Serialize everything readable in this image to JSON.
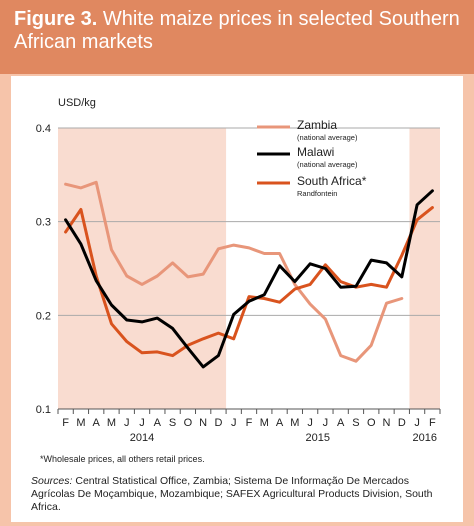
{
  "header": {
    "figure_label": "Figure 3.",
    "title": "White maize prices in selected Southern African markets"
  },
  "footnote": "*Wholesale prices, all others retail prices.",
  "sources_label": "Sources:",
  "sources_text": "Central Statistical Office, Zambia; Sistema De Informação De Mercados Agrícolas De Moçambique, Mozambique; SAFEX Agricultural Products Division, South Africa.",
  "colors": {
    "zambia": "#e8967a",
    "malawi": "#000000",
    "south_africa": "#d9531e",
    "shade": "#f9dcd0",
    "grid": "#aaaaaa",
    "header_bg": "#e08860",
    "page_bg": "#f6c4aa"
  },
  "chart_data": {
    "type": "line",
    "ylabel": "USD/kg",
    "ylim": [
      0.1,
      0.4
    ],
    "yticks": [
      "0.1",
      "0.2",
      "0.3",
      "0.4"
    ],
    "grid": true,
    "categories": [
      "F",
      "M",
      "A",
      "M",
      "J",
      "J",
      "A",
      "S",
      "O",
      "N",
      "D",
      "J",
      "F",
      "M",
      "A",
      "M",
      "J",
      "J",
      "A",
      "S",
      "O",
      "N",
      "D",
      "J",
      "F"
    ],
    "year_labels": [
      "2014",
      "2015",
      "2016"
    ],
    "legend_position": "top-right",
    "series": [
      {
        "name": "Zambia",
        "sublabel": "(national average)",
        "key": "zambia",
        "values": [
          0.34,
          0.336,
          0.342,
          0.27,
          0.242,
          0.233,
          0.242,
          0.256,
          0.241,
          0.244,
          0.271,
          0.275,
          0.272,
          0.266,
          0.266,
          0.233,
          0.212,
          0.196,
          0.157,
          0.151,
          0.168,
          0.213,
          0.218,
          null,
          null
        ]
      },
      {
        "name": "Malawi",
        "sublabel": "(national average)",
        "key": "malawi",
        "values": [
          0.302,
          0.276,
          0.237,
          0.211,
          0.195,
          0.193,
          0.197,
          0.186,
          0.165,
          0.145,
          0.157,
          0.201,
          0.215,
          0.222,
          0.253,
          0.236,
          0.255,
          0.25,
          0.23,
          0.231,
          0.259,
          0.256,
          0.241,
          0.318,
          0.333
        ]
      },
      {
        "name": "South Africa*",
        "sublabel": "Randfontein",
        "key": "south_africa",
        "values": [
          0.289,
          0.313,
          0.242,
          0.191,
          0.172,
          0.16,
          0.161,
          0.157,
          0.168,
          0.175,
          0.181,
          0.175,
          0.22,
          0.218,
          0.214,
          0.228,
          0.233,
          0.254,
          0.236,
          0.23,
          0.233,
          0.23,
          0.264,
          0.302,
          0.315
        ]
      }
    ]
  }
}
